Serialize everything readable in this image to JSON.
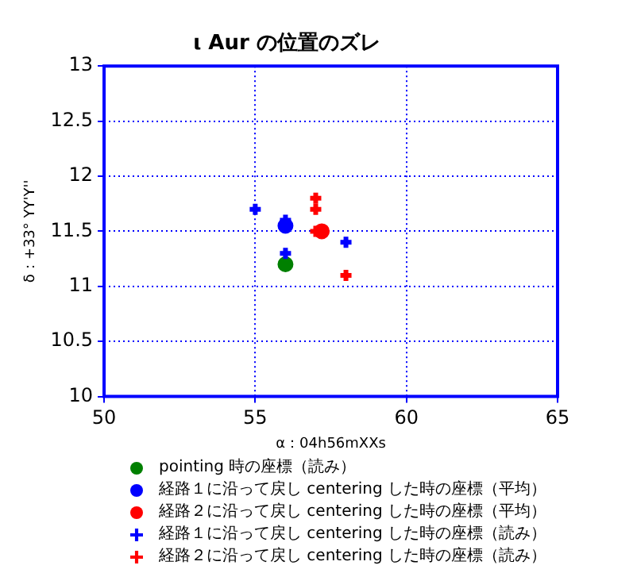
{
  "chart_data": {
    "type": "scatter",
    "title": "ι Aur の位置のズレ",
    "xlabel": "α：04h56mXXs",
    "ylabel": "δ：+33° YY'Y''",
    "xlim": [
      50,
      65
    ],
    "xticks": [
      50,
      55,
      60,
      65
    ],
    "ylim": [
      10,
      13
    ],
    "yticks": [
      10,
      10.5,
      11,
      11.5,
      12,
      12.5,
      13
    ],
    "grid": true,
    "legend": "bottom",
    "series": [
      {
        "name": "pointing 時の座標（読み）",
        "color": "#008000",
        "marker": "circle",
        "x": [
          56
        ],
        "values": [
          11.2
        ]
      },
      {
        "name": "経路１に沿って戻し centering した時の座標（平均）",
        "color": "#0000ff",
        "marker": "circle",
        "x": [
          56
        ],
        "values": [
          11.55
        ]
      },
      {
        "name": "経路２に沿って戻し centering した時の座標（平均）",
        "color": "#ff0000",
        "marker": "circle",
        "x": [
          57.2
        ],
        "values": [
          11.5
        ]
      },
      {
        "name": "経路１に沿って戻し centering した時の座標（読み）",
        "color": "#0000ff",
        "marker": "cross",
        "x": [
          55,
          56,
          56,
          58
        ],
        "values": [
          11.7,
          11.6,
          11.3,
          11.4
        ]
      },
      {
        "name": "経路２に沿って戻し centering した時の座標（読み）",
        "color": "#ff0000",
        "marker": "cross",
        "x": [
          57,
          57,
          57,
          58
        ],
        "values": [
          11.8,
          11.7,
          11.5,
          11.1
        ]
      }
    ]
  }
}
